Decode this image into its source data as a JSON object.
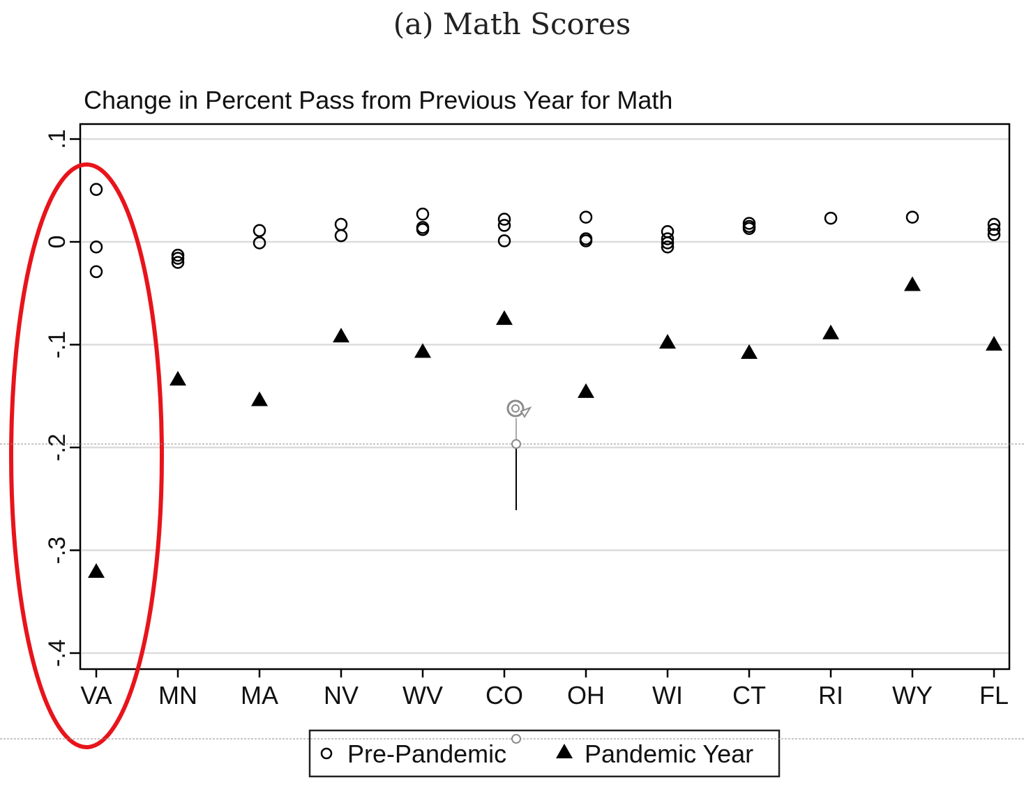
{
  "figure": {
    "caption": "(a) Math Scores"
  },
  "legend": {
    "items": [
      {
        "label": "Pre-Pandemic",
        "marker": "hollow-circle"
      },
      {
        "label": "Pandemic Year",
        "marker": "filled-triangle"
      }
    ]
  },
  "annotation": {
    "highlight": "red ellipse around VA column",
    "highlight_color": "#e8141b"
  },
  "colors": {
    "marker": "#000000",
    "grid": "#dcdcdc",
    "axis": "#000000",
    "highlight": "#e8141b",
    "selection_overlay": "#8c8c8c"
  },
  "chart_data": {
    "type": "scatter",
    "title": "Change in Percent Pass from Previous Year for Math",
    "xlabel": "",
    "ylabel": "",
    "categories": [
      "VA",
      "MN",
      "MA",
      "NV",
      "WV",
      "CO",
      "OH",
      "WI",
      "CT",
      "RI",
      "WY",
      "FL"
    ],
    "yticks": [
      0.1,
      0,
      -0.1,
      -0.2,
      -0.3,
      -0.4
    ],
    "ytick_labels": [
      ".1",
      "0",
      "-.1",
      "-.2",
      "-.3",
      "-.4"
    ],
    "ylim": [
      -0.415,
      0.115
    ],
    "grid": true,
    "legend_position": "bottom",
    "series": [
      {
        "name": "Pre-Pandemic",
        "marker": "hollow-circle",
        "values": [
          [
            0.051,
            -0.005,
            -0.029
          ],
          [
            -0.013,
            -0.016,
            -0.02
          ],
          [
            0.011,
            -0.001
          ],
          [
            0.017,
            0.006
          ],
          [
            0.027,
            0.014,
            0.012
          ],
          [
            0.022,
            0.016,
            0.001
          ],
          [
            0.024,
            0.003,
            0.001
          ],
          [
            0.01,
            0.003,
            -0.001,
            -0.005
          ],
          [
            0.018,
            0.015,
            0.013
          ],
          [
            0.023
          ],
          [
            0.024
          ],
          [
            0.017,
            0.012,
            0.007
          ]
        ]
      },
      {
        "name": "Pandemic Year",
        "marker": "filled-triangle",
        "values": [
          -0.32,
          -0.133,
          -0.153,
          -0.091,
          -0.106,
          -0.074,
          -0.145,
          -0.097,
          -0.107,
          -0.088,
          -0.041,
          -0.099
        ]
      }
    ]
  }
}
